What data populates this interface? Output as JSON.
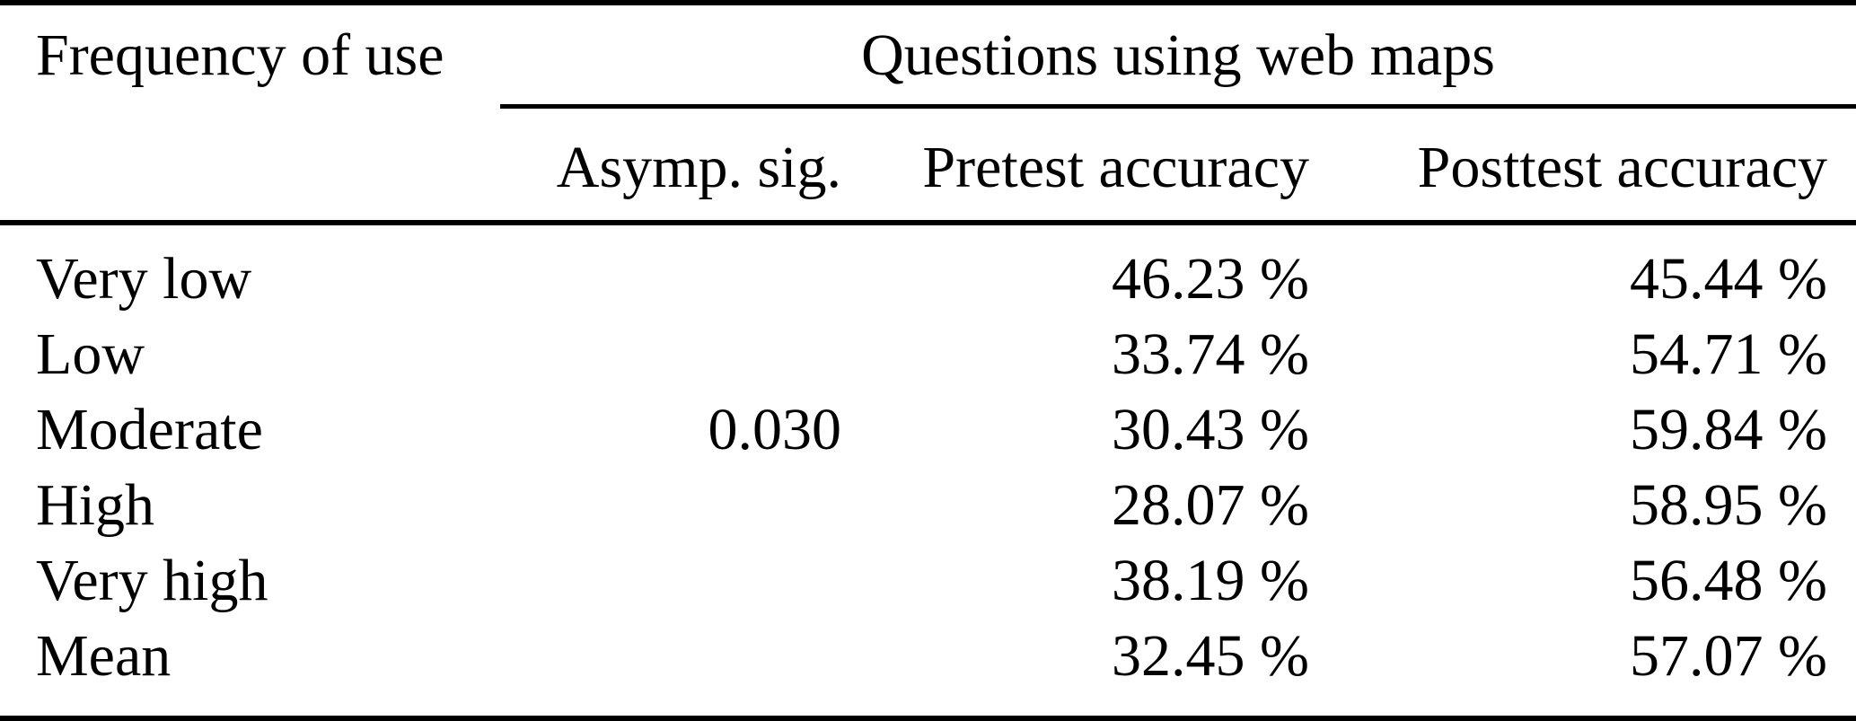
{
  "colors": {
    "text": "#000000",
    "background": "#ffffff",
    "rules": "#000000"
  },
  "table": {
    "stub_header": "Frequency of use",
    "group_header": "Questions using web maps",
    "sub_headers": {
      "asymp_sig": "Asymp. sig.",
      "pretest": "Pretest accuracy",
      "posttest": "Posttest accuracy"
    },
    "rows": [
      {
        "label": "Very low",
        "asymp_sig": "",
        "pretest": "46.23 %",
        "posttest": "45.44 %"
      },
      {
        "label": "Low",
        "asymp_sig": "",
        "pretest": "33.74 %",
        "posttest": "54.71 %"
      },
      {
        "label": "Moderate",
        "asymp_sig": "0.030",
        "pretest": "30.43 %",
        "posttest": "59.84 %"
      },
      {
        "label": "High",
        "asymp_sig": "",
        "pretest": "28.07 %",
        "posttest": "58.95 %"
      },
      {
        "label": "Very high",
        "asymp_sig": "",
        "pretest": "38.19 %",
        "posttest": "56.48 %"
      },
      {
        "label": "Mean",
        "asymp_sig": "",
        "pretest": "32.45 %",
        "posttest": "57.07 %"
      }
    ]
  }
}
